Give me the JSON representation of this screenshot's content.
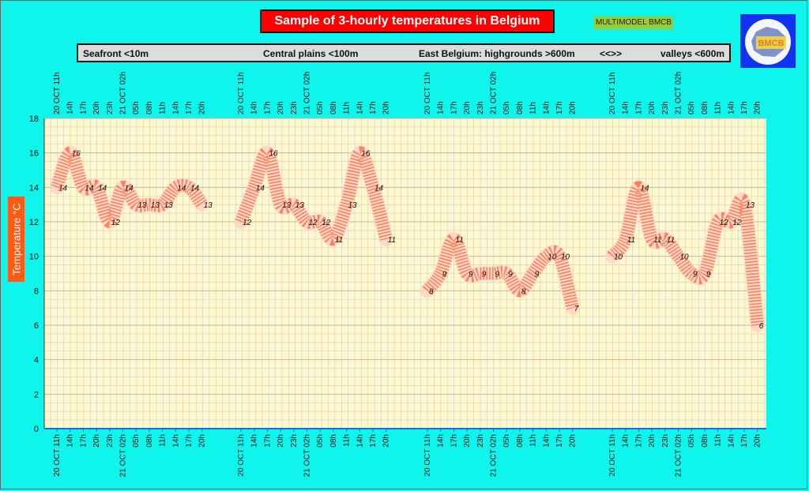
{
  "header": {
    "title": "Sample of 3-hourly temperatures in Belgium",
    "model_badge": "MULTIMODEL BMCB",
    "logo_text": "BMCB"
  },
  "legend": {
    "seafront": "Seafront <10m",
    "central": "Central plains <100m",
    "east": "East Belgium: highgrounds >600m",
    "arrows": "<<>>",
    "valleys": "valleys <600m"
  },
  "chart_data": {
    "type": "line",
    "ylabel": "Temperature  °C",
    "ylim": [
      0,
      18
    ],
    "yticks": [
      0,
      2,
      4,
      6,
      8,
      10,
      12,
      14,
      16,
      18
    ],
    "grid": true,
    "colors": {
      "plot_bg": "#fff8cc",
      "line": "#ff8060",
      "grid": "#cccccc",
      "page_bg": "#0ff5ec"
    },
    "time_labels": [
      "20 OCT 11h",
      "14h",
      "17h",
      "20h",
      "23h",
      "21 OCT 02h",
      "05h",
      "08h",
      "11h",
      "14h",
      "17h",
      "20h"
    ],
    "series": [
      {
        "values": [
          14,
          16,
          14,
          14,
          12,
          14,
          13,
          13,
          13,
          14,
          14,
          13
        ]
      },
      {
        "values": [
          12,
          14,
          16,
          13,
          13,
          12,
          12,
          11,
          13,
          16,
          14,
          11
        ]
      },
      {
        "values": [
          8,
          9,
          11,
          9,
          9,
          9,
          9,
          8,
          9,
          10,
          10,
          7
        ]
      },
      {
        "values": [
          10,
          11,
          14,
          11,
          11,
          10,
          9,
          9,
          12,
          12,
          13,
          6
        ]
      }
    ]
  }
}
